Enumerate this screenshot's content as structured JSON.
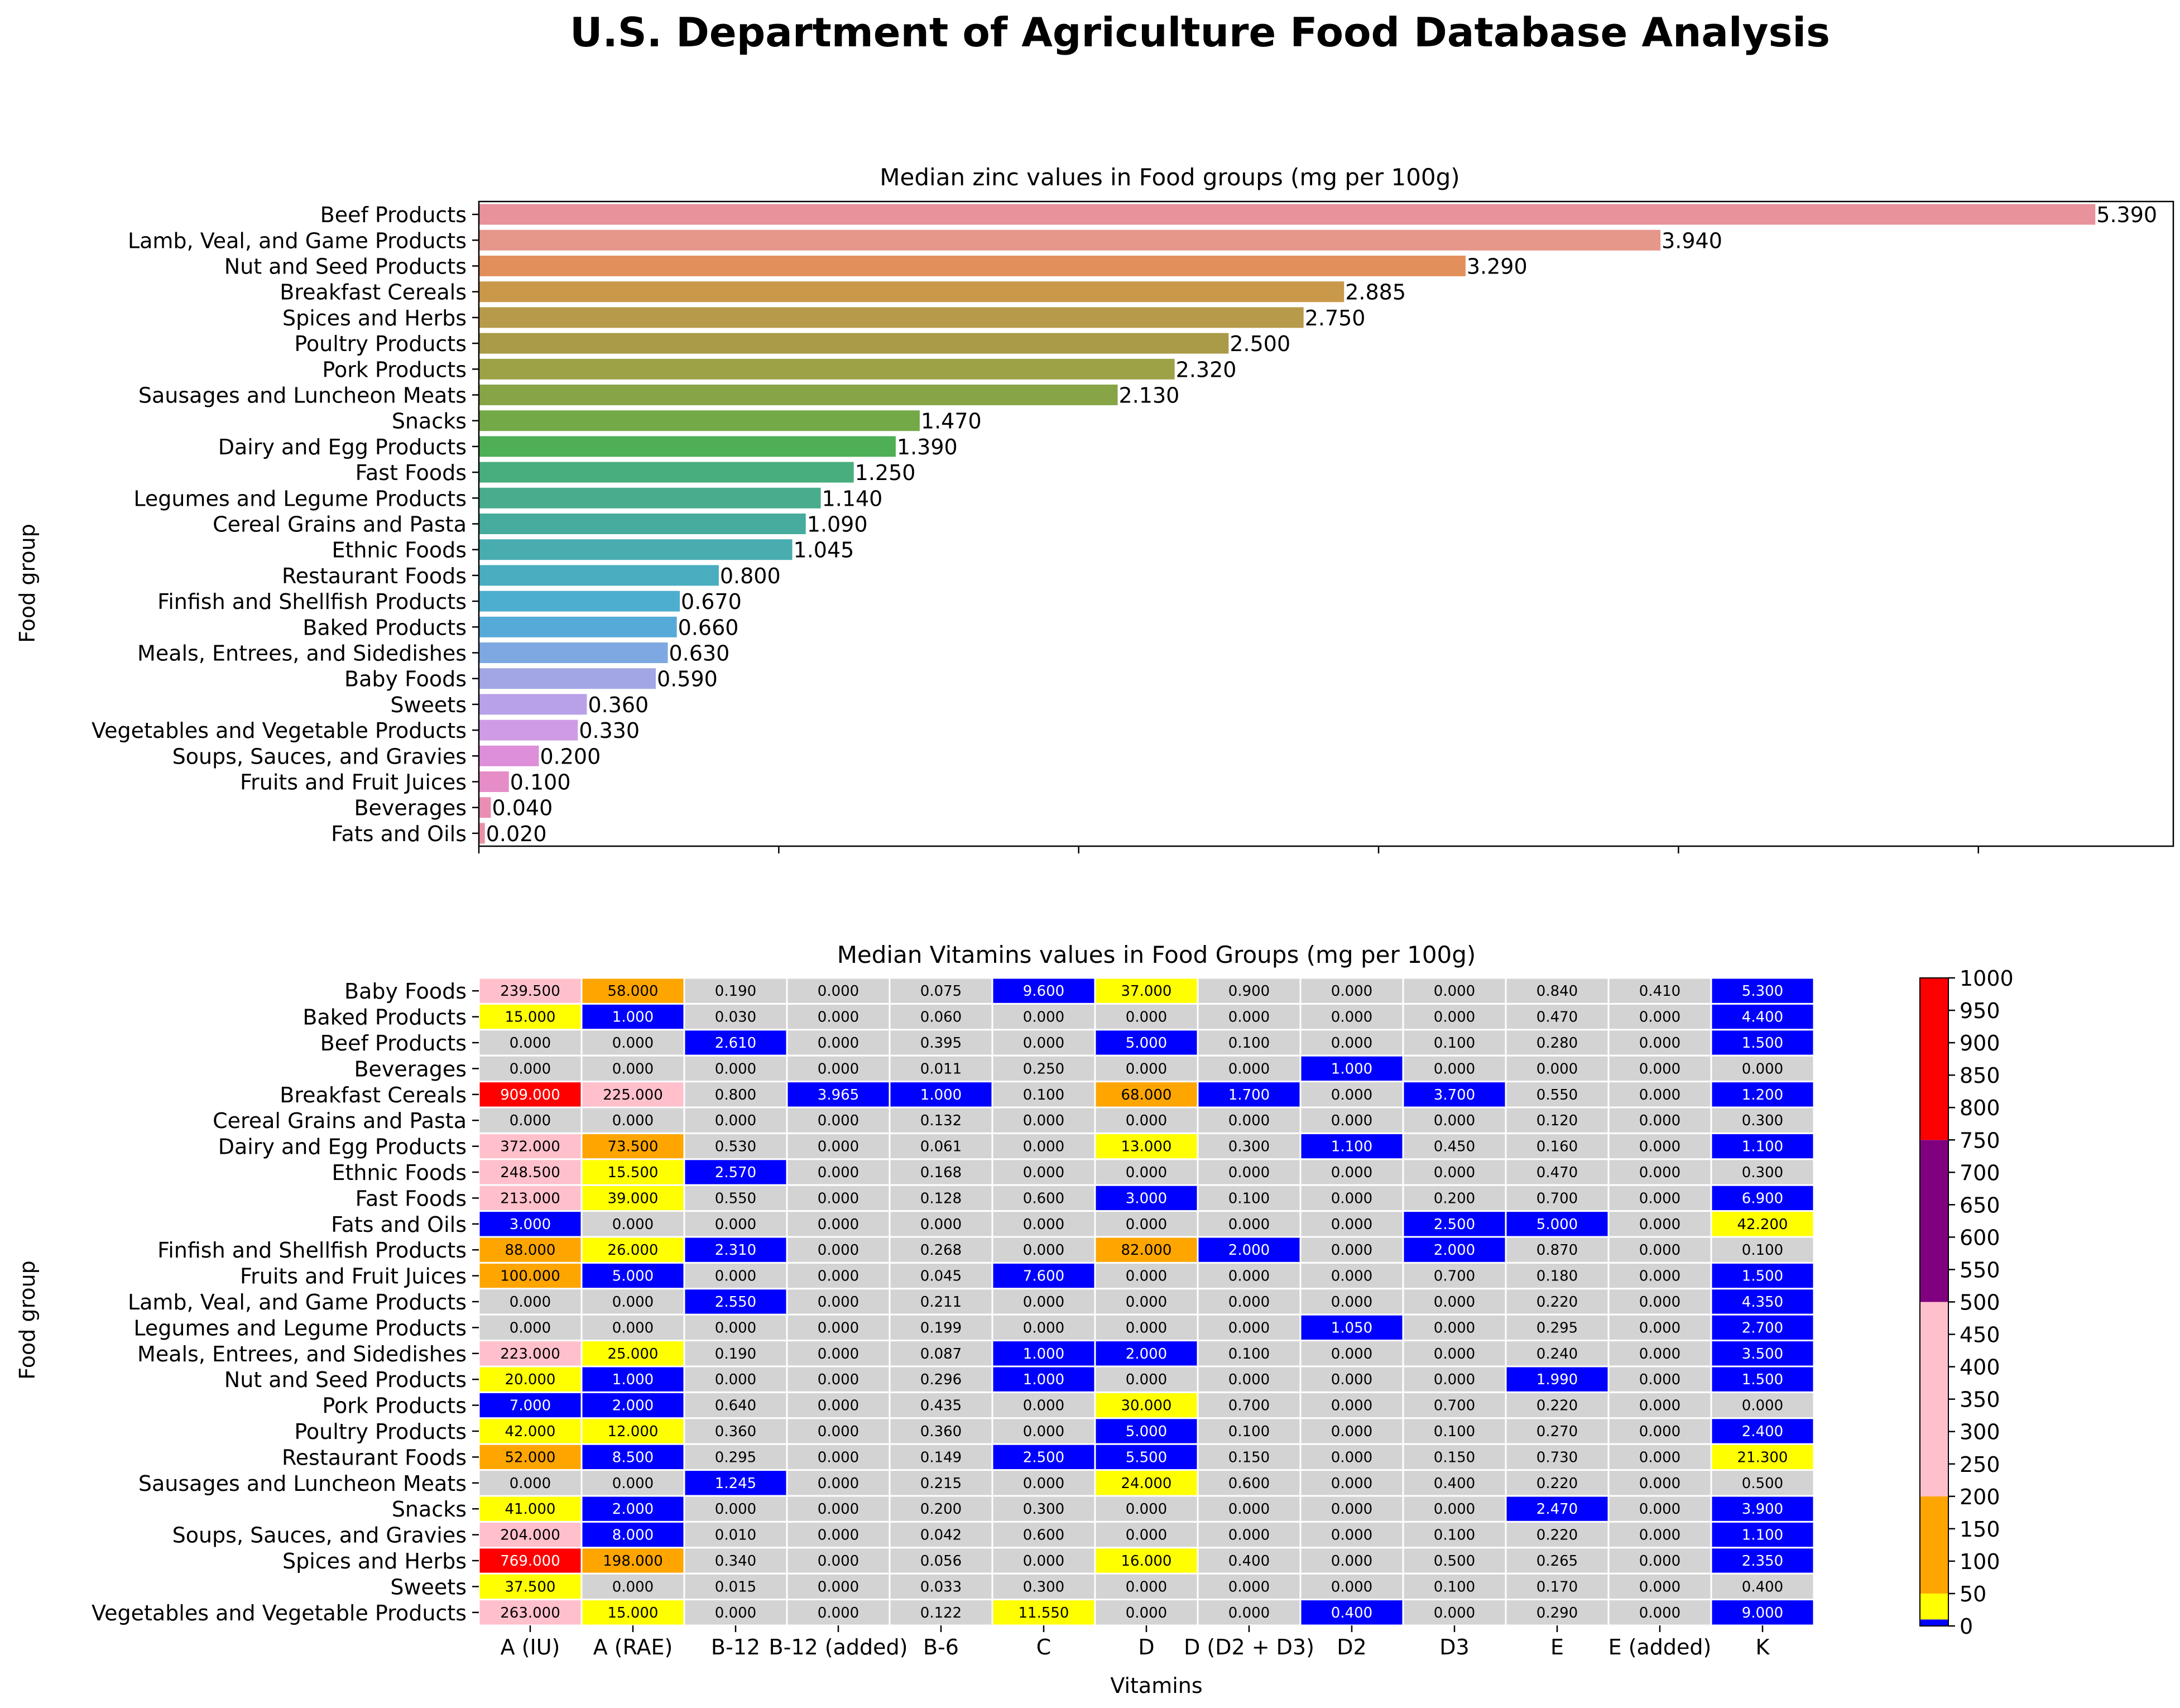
{
  "suptitle": "U.S. Department of Agriculture Food Database Analysis",
  "chart_data": [
    {
      "type": "bar",
      "orientation": "horizontal",
      "title": "Median zinc values in Food groups (mg per 100g)",
      "xlabel": "",
      "ylabel": "Food group",
      "categories": [
        "Beef Products",
        "Lamb, Veal, and Game Products",
        "Nut and Seed Products",
        "Breakfast Cereals",
        "Spices and Herbs",
        "Poultry Products",
        "Pork Products",
        "Sausages and Luncheon Meats",
        "Snacks",
        "Dairy and Egg Products",
        "Fast Foods",
        "Legumes and Legume Products",
        "Cereal Grains and Pasta",
        "Ethnic Foods",
        "Restaurant Foods",
        "Finfish and Shellfish Products",
        "Baked Products",
        "Meals, Entrees, and Sidedishes",
        "Baby Foods",
        "Sweets",
        "Vegetables and Vegetable Products",
        "Soups, Sauces, and Gravies",
        "Fruits and Fruit Juices",
        "Beverages",
        "Fats and Oils"
      ],
      "values": [
        5.39,
        3.94,
        3.29,
        2.885,
        2.75,
        2.5,
        2.32,
        2.13,
        1.47,
        1.39,
        1.25,
        1.14,
        1.09,
        1.045,
        0.8,
        0.67,
        0.66,
        0.63,
        0.59,
        0.36,
        0.33,
        0.2,
        0.1,
        0.04,
        0.02
      ],
      "value_labels": [
        "5.390",
        "3.940",
        "3.290",
        "2.885",
        "2.750",
        "2.500",
        "2.320",
        "2.130",
        "1.470",
        "1.390",
        "1.250",
        "1.140",
        "1.090",
        "1.045",
        "0.800",
        "0.670",
        "0.660",
        "0.630",
        "0.590",
        "0.360",
        "0.330",
        "0.200",
        "0.100",
        "0.040",
        "0.020"
      ],
      "colors": [
        "#e8929b",
        "#e6978a",
        "#e38f5b",
        "#c99849",
        "#b79a4a",
        "#a99b48",
        "#9ca346",
        "#87a447",
        "#73a946",
        "#4faf56",
        "#49ae7e",
        "#48ac8d",
        "#47ab9e",
        "#49adb0",
        "#4aadc0",
        "#4daed0",
        "#56aad8",
        "#7ea8e1",
        "#a3a6e4",
        "#b9a1e7",
        "#cf9be6",
        "#dd8fd9",
        "#e68dc8",
        "#ea8eb3",
        "#eb90a6"
      ],
      "xlim": [
        0,
        5.65
      ],
      "grid": false
    },
    {
      "type": "heatmap",
      "title": "Median Vitamins values in Food Groups (mg per 100g)",
      "xlabel": "Vitamins",
      "ylabel": "Food group",
      "columns": [
        "A (IU)",
        "A (RAE)",
        "B-12",
        "B-12 (added)",
        "B-6",
        "C",
        "D",
        "D (D2 + D3)",
        "D2",
        "D3",
        "E",
        "E (added)",
        "K"
      ],
      "rows": [
        "Baby Foods",
        "Baked Products",
        "Beef Products",
        "Beverages",
        "Breakfast Cereals",
        "Cereal Grains and Pasta",
        "Dairy and Egg Products",
        "Ethnic Foods",
        "Fast Foods",
        "Fats and Oils",
        "Finfish and Shellfish Products",
        "Fruits and Fruit Juices",
        "Lamb, Veal, and Game Products",
        "Legumes and Legume Products",
        "Meals, Entrees, and Sidedishes",
        "Nut and Seed Products",
        "Pork Products",
        "Poultry Products",
        "Restaurant Foods",
        "Sausages and Luncheon Meats",
        "Snacks",
        "Soups, Sauces, and Gravies",
        "Spices and Herbs",
        "Sweets",
        "Vegetables and Vegetable Products"
      ],
      "values": [
        [
          "239.500",
          "58.000",
          "0.190",
          "0.000",
          "0.075",
          "9.600",
          "37.000",
          "0.900",
          "0.000",
          "0.000",
          "0.840",
          "0.410",
          "5.300"
        ],
        [
          "15.000",
          "1.000",
          "0.030",
          "0.000",
          "0.060",
          "0.000",
          "0.000",
          "0.000",
          "0.000",
          "0.000",
          "0.470",
          "0.000",
          "4.400"
        ],
        [
          "0.000",
          "0.000",
          "2.610",
          "0.000",
          "0.395",
          "0.000",
          "5.000",
          "0.100",
          "0.000",
          "0.100",
          "0.280",
          "0.000",
          "1.500"
        ],
        [
          "0.000",
          "0.000",
          "0.000",
          "0.000",
          "0.011",
          "0.250",
          "0.000",
          "0.000",
          "1.000",
          "0.000",
          "0.000",
          "0.000",
          "0.000"
        ],
        [
          "909.000",
          "225.000",
          "0.800",
          "3.965",
          "1.000",
          "0.100",
          "68.000",
          "1.700",
          "0.000",
          "3.700",
          "0.550",
          "0.000",
          "1.200"
        ],
        [
          "0.000",
          "0.000",
          "0.000",
          "0.000",
          "0.132",
          "0.000",
          "0.000",
          "0.000",
          "0.000",
          "0.000",
          "0.120",
          "0.000",
          "0.300"
        ],
        [
          "372.000",
          "73.500",
          "0.530",
          "0.000",
          "0.061",
          "0.000",
          "13.000",
          "0.300",
          "1.100",
          "0.450",
          "0.160",
          "0.000",
          "1.100"
        ],
        [
          "248.500",
          "15.500",
          "2.570",
          "0.000",
          "0.168",
          "0.000",
          "0.000",
          "0.000",
          "0.000",
          "0.000",
          "0.470",
          "0.000",
          "0.300"
        ],
        [
          "213.000",
          "39.000",
          "0.550",
          "0.000",
          "0.128",
          "0.600",
          "3.000",
          "0.100",
          "0.000",
          "0.200",
          "0.700",
          "0.000",
          "6.900"
        ],
        [
          "3.000",
          "0.000",
          "0.000",
          "0.000",
          "0.000",
          "0.000",
          "0.000",
          "0.000",
          "0.000",
          "2.500",
          "5.000",
          "0.000",
          "42.200"
        ],
        [
          "88.000",
          "26.000",
          "2.310",
          "0.000",
          "0.268",
          "0.000",
          "82.000",
          "2.000",
          "0.000",
          "2.000",
          "0.870",
          "0.000",
          "0.100"
        ],
        [
          "100.000",
          "5.000",
          "0.000",
          "0.000",
          "0.045",
          "7.600",
          "0.000",
          "0.000",
          "0.000",
          "0.700",
          "0.180",
          "0.000",
          "1.500"
        ],
        [
          "0.000",
          "0.000",
          "2.550",
          "0.000",
          "0.211",
          "0.000",
          "0.000",
          "0.000",
          "0.000",
          "0.000",
          "0.220",
          "0.000",
          "4.350"
        ],
        [
          "0.000",
          "0.000",
          "0.000",
          "0.000",
          "0.199",
          "0.000",
          "0.000",
          "0.000",
          "1.050",
          "0.000",
          "0.295",
          "0.000",
          "2.700"
        ],
        [
          "223.000",
          "25.000",
          "0.190",
          "0.000",
          "0.087",
          "1.000",
          "2.000",
          "0.100",
          "0.000",
          "0.000",
          "0.240",
          "0.000",
          "3.500"
        ],
        [
          "20.000",
          "1.000",
          "0.000",
          "0.000",
          "0.296",
          "1.000",
          "0.000",
          "0.000",
          "0.000",
          "0.000",
          "1.990",
          "0.000",
          "1.500"
        ],
        [
          "7.000",
          "2.000",
          "0.640",
          "0.000",
          "0.435",
          "0.000",
          "30.000",
          "0.700",
          "0.000",
          "0.700",
          "0.220",
          "0.000",
          "0.000"
        ],
        [
          "42.000",
          "12.000",
          "0.360",
          "0.000",
          "0.360",
          "0.000",
          "5.000",
          "0.100",
          "0.000",
          "0.100",
          "0.270",
          "0.000",
          "2.400"
        ],
        [
          "52.000",
          "8.500",
          "0.295",
          "0.000",
          "0.149",
          "2.500",
          "5.500",
          "0.150",
          "0.000",
          "0.150",
          "0.730",
          "0.000",
          "21.300"
        ],
        [
          "0.000",
          "0.000",
          "1.245",
          "0.000",
          "0.215",
          "0.000",
          "24.000",
          "0.600",
          "0.000",
          "0.400",
          "0.220",
          "0.000",
          "0.500"
        ],
        [
          "41.000",
          "2.000",
          "0.000",
          "0.000",
          "0.200",
          "0.300",
          "0.000",
          "0.000",
          "0.000",
          "0.000",
          "2.470",
          "0.000",
          "3.900"
        ],
        [
          "204.000",
          "8.000",
          "0.010",
          "0.000",
          "0.042",
          "0.600",
          "0.000",
          "0.000",
          "0.000",
          "0.100",
          "0.220",
          "0.000",
          "1.100"
        ],
        [
          "769.000",
          "198.000",
          "0.340",
          "0.000",
          "0.056",
          "0.000",
          "16.000",
          "0.400",
          "0.000",
          "0.500",
          "0.265",
          "0.000",
          "2.350"
        ],
        [
          "37.500",
          "0.000",
          "0.015",
          "0.000",
          "0.033",
          "0.300",
          "0.000",
          "0.000",
          "0.000",
          "0.100",
          "0.170",
          "0.000",
          "0.400"
        ],
        [
          "263.000",
          "15.000",
          "0.000",
          "0.000",
          "0.122",
          "11.550",
          "0.000",
          "0.000",
          "0.400",
          "0.000",
          "0.290",
          "0.000",
          "9.000"
        ]
      ],
      "cell_colors": [
        [
          "pink",
          "orange",
          "lightgray",
          "lightgray",
          "lightgray",
          "blue",
          "yellow",
          "lightgray",
          "lightgray",
          "lightgray",
          "lightgray",
          "lightgray",
          "blue"
        ],
        [
          "yellow",
          "blue",
          "lightgray",
          "lightgray",
          "lightgray",
          "lightgray",
          "lightgray",
          "lightgray",
          "lightgray",
          "lightgray",
          "lightgray",
          "lightgray",
          "blue"
        ],
        [
          "lightgray",
          "lightgray",
          "blue",
          "lightgray",
          "lightgray",
          "lightgray",
          "blue",
          "lightgray",
          "lightgray",
          "lightgray",
          "lightgray",
          "lightgray",
          "blue"
        ],
        [
          "lightgray",
          "lightgray",
          "lightgray",
          "lightgray",
          "lightgray",
          "lightgray",
          "lightgray",
          "lightgray",
          "blue",
          "lightgray",
          "lightgray",
          "lightgray",
          "lightgray"
        ],
        [
          "red",
          "pink",
          "lightgray",
          "blue",
          "blue",
          "lightgray",
          "orange",
          "blue",
          "lightgray",
          "blue",
          "lightgray",
          "lightgray",
          "blue"
        ],
        [
          "lightgray",
          "lightgray",
          "lightgray",
          "lightgray",
          "lightgray",
          "lightgray",
          "lightgray",
          "lightgray",
          "lightgray",
          "lightgray",
          "lightgray",
          "lightgray",
          "lightgray"
        ],
        [
          "pink",
          "orange",
          "lightgray",
          "lightgray",
          "lightgray",
          "lightgray",
          "yellow",
          "lightgray",
          "blue",
          "lightgray",
          "lightgray",
          "lightgray",
          "blue"
        ],
        [
          "pink",
          "yellow",
          "blue",
          "lightgray",
          "lightgray",
          "lightgray",
          "lightgray",
          "lightgray",
          "lightgray",
          "lightgray",
          "lightgray",
          "lightgray",
          "lightgray"
        ],
        [
          "pink",
          "yellow",
          "lightgray",
          "lightgray",
          "lightgray",
          "lightgray",
          "blue",
          "lightgray",
          "lightgray",
          "lightgray",
          "lightgray",
          "lightgray",
          "blue"
        ],
        [
          "blue",
          "lightgray",
          "lightgray",
          "lightgray",
          "lightgray",
          "lightgray",
          "lightgray",
          "lightgray",
          "lightgray",
          "blue",
          "blue",
          "lightgray",
          "yellow"
        ],
        [
          "orange",
          "yellow",
          "blue",
          "lightgray",
          "lightgray",
          "lightgray",
          "orange",
          "blue",
          "lightgray",
          "blue",
          "lightgray",
          "lightgray",
          "lightgray"
        ],
        [
          "orange",
          "blue",
          "lightgray",
          "lightgray",
          "lightgray",
          "blue",
          "lightgray",
          "lightgray",
          "lightgray",
          "lightgray",
          "lightgray",
          "lightgray",
          "blue"
        ],
        [
          "lightgray",
          "lightgray",
          "blue",
          "lightgray",
          "lightgray",
          "lightgray",
          "lightgray",
          "lightgray",
          "lightgray",
          "lightgray",
          "lightgray",
          "lightgray",
          "blue"
        ],
        [
          "lightgray",
          "lightgray",
          "lightgray",
          "lightgray",
          "lightgray",
          "lightgray",
          "lightgray",
          "lightgray",
          "blue",
          "lightgray",
          "lightgray",
          "lightgray",
          "blue"
        ],
        [
          "pink",
          "yellow",
          "lightgray",
          "lightgray",
          "lightgray",
          "blue",
          "blue",
          "lightgray",
          "lightgray",
          "lightgray",
          "lightgray",
          "lightgray",
          "blue"
        ],
        [
          "yellow",
          "blue",
          "lightgray",
          "lightgray",
          "lightgray",
          "blue",
          "lightgray",
          "lightgray",
          "lightgray",
          "lightgray",
          "blue",
          "lightgray",
          "blue"
        ],
        [
          "blue",
          "blue",
          "lightgray",
          "lightgray",
          "lightgray",
          "lightgray",
          "yellow",
          "lightgray",
          "lightgray",
          "lightgray",
          "lightgray",
          "lightgray",
          "lightgray"
        ],
        [
          "yellow",
          "yellow",
          "lightgray",
          "lightgray",
          "lightgray",
          "lightgray",
          "blue",
          "lightgray",
          "lightgray",
          "lightgray",
          "lightgray",
          "lightgray",
          "blue"
        ],
        [
          "orange",
          "blue",
          "lightgray",
          "lightgray",
          "lightgray",
          "blue",
          "blue",
          "lightgray",
          "lightgray",
          "lightgray",
          "lightgray",
          "lightgray",
          "yellow"
        ],
        [
          "lightgray",
          "lightgray",
          "blue",
          "lightgray",
          "lightgray",
          "lightgray",
          "yellow",
          "lightgray",
          "lightgray",
          "lightgray",
          "lightgray",
          "lightgray",
          "lightgray"
        ],
        [
          "yellow",
          "blue",
          "lightgray",
          "lightgray",
          "lightgray",
          "lightgray",
          "lightgray",
          "lightgray",
          "lightgray",
          "lightgray",
          "blue",
          "lightgray",
          "blue"
        ],
        [
          "pink",
          "blue",
          "lightgray",
          "lightgray",
          "lightgray",
          "lightgray",
          "lightgray",
          "lightgray",
          "lightgray",
          "lightgray",
          "lightgray",
          "lightgray",
          "blue"
        ],
        [
          "red",
          "orange",
          "lightgray",
          "lightgray",
          "lightgray",
          "lightgray",
          "yellow",
          "lightgray",
          "lightgray",
          "lightgray",
          "lightgray",
          "lightgray",
          "blue"
        ],
        [
          "yellow",
          "lightgray",
          "lightgray",
          "lightgray",
          "lightgray",
          "lightgray",
          "lightgray",
          "lightgray",
          "lightgray",
          "lightgray",
          "lightgray",
          "lightgray",
          "lightgray"
        ],
        [
          "pink",
          "yellow",
          "lightgray",
          "lightgray",
          "lightgray",
          "yellow",
          "lightgray",
          "lightgray",
          "blue",
          "lightgray",
          "lightgray",
          "lightgray",
          "blue"
        ]
      ],
      "palette": {
        "lightgray": "#d3d3d3",
        "blue": "#0000ff",
        "yellow": "#ffff00",
        "orange": "#ffa500",
        "pink": "#ffc0cb",
        "purple": "#800080",
        "red": "#ff0000"
      },
      "text_colors": {
        "lightgray": "#000000",
        "blue": "#ffffff",
        "yellow": "#000000",
        "orange": "#000000",
        "pink": "#000000",
        "purple": "#ffffff",
        "red": "#ffffff"
      },
      "colorbar": {
        "range": [
          0,
          1000
        ],
        "segments": [
          {
            "from": 0,
            "to": 10,
            "color": "#0000ff"
          },
          {
            "from": 10,
            "to": 50,
            "color": "#ffff00"
          },
          {
            "from": 50,
            "to": 200,
            "color": "#ffa500"
          },
          {
            "from": 200,
            "to": 500,
            "color": "#ffc0cb"
          },
          {
            "from": 500,
            "to": 750,
            "color": "#800080"
          },
          {
            "from": 750,
            "to": 1000,
            "color": "#ff0000"
          }
        ],
        "ticks": [
          "0",
          "50",
          "100",
          "150",
          "200",
          "250",
          "300",
          "350",
          "400",
          "450",
          "500",
          "550",
          "600",
          "650",
          "700",
          "750",
          "800",
          "850",
          "900",
          "950",
          "1000"
        ]
      }
    }
  ]
}
